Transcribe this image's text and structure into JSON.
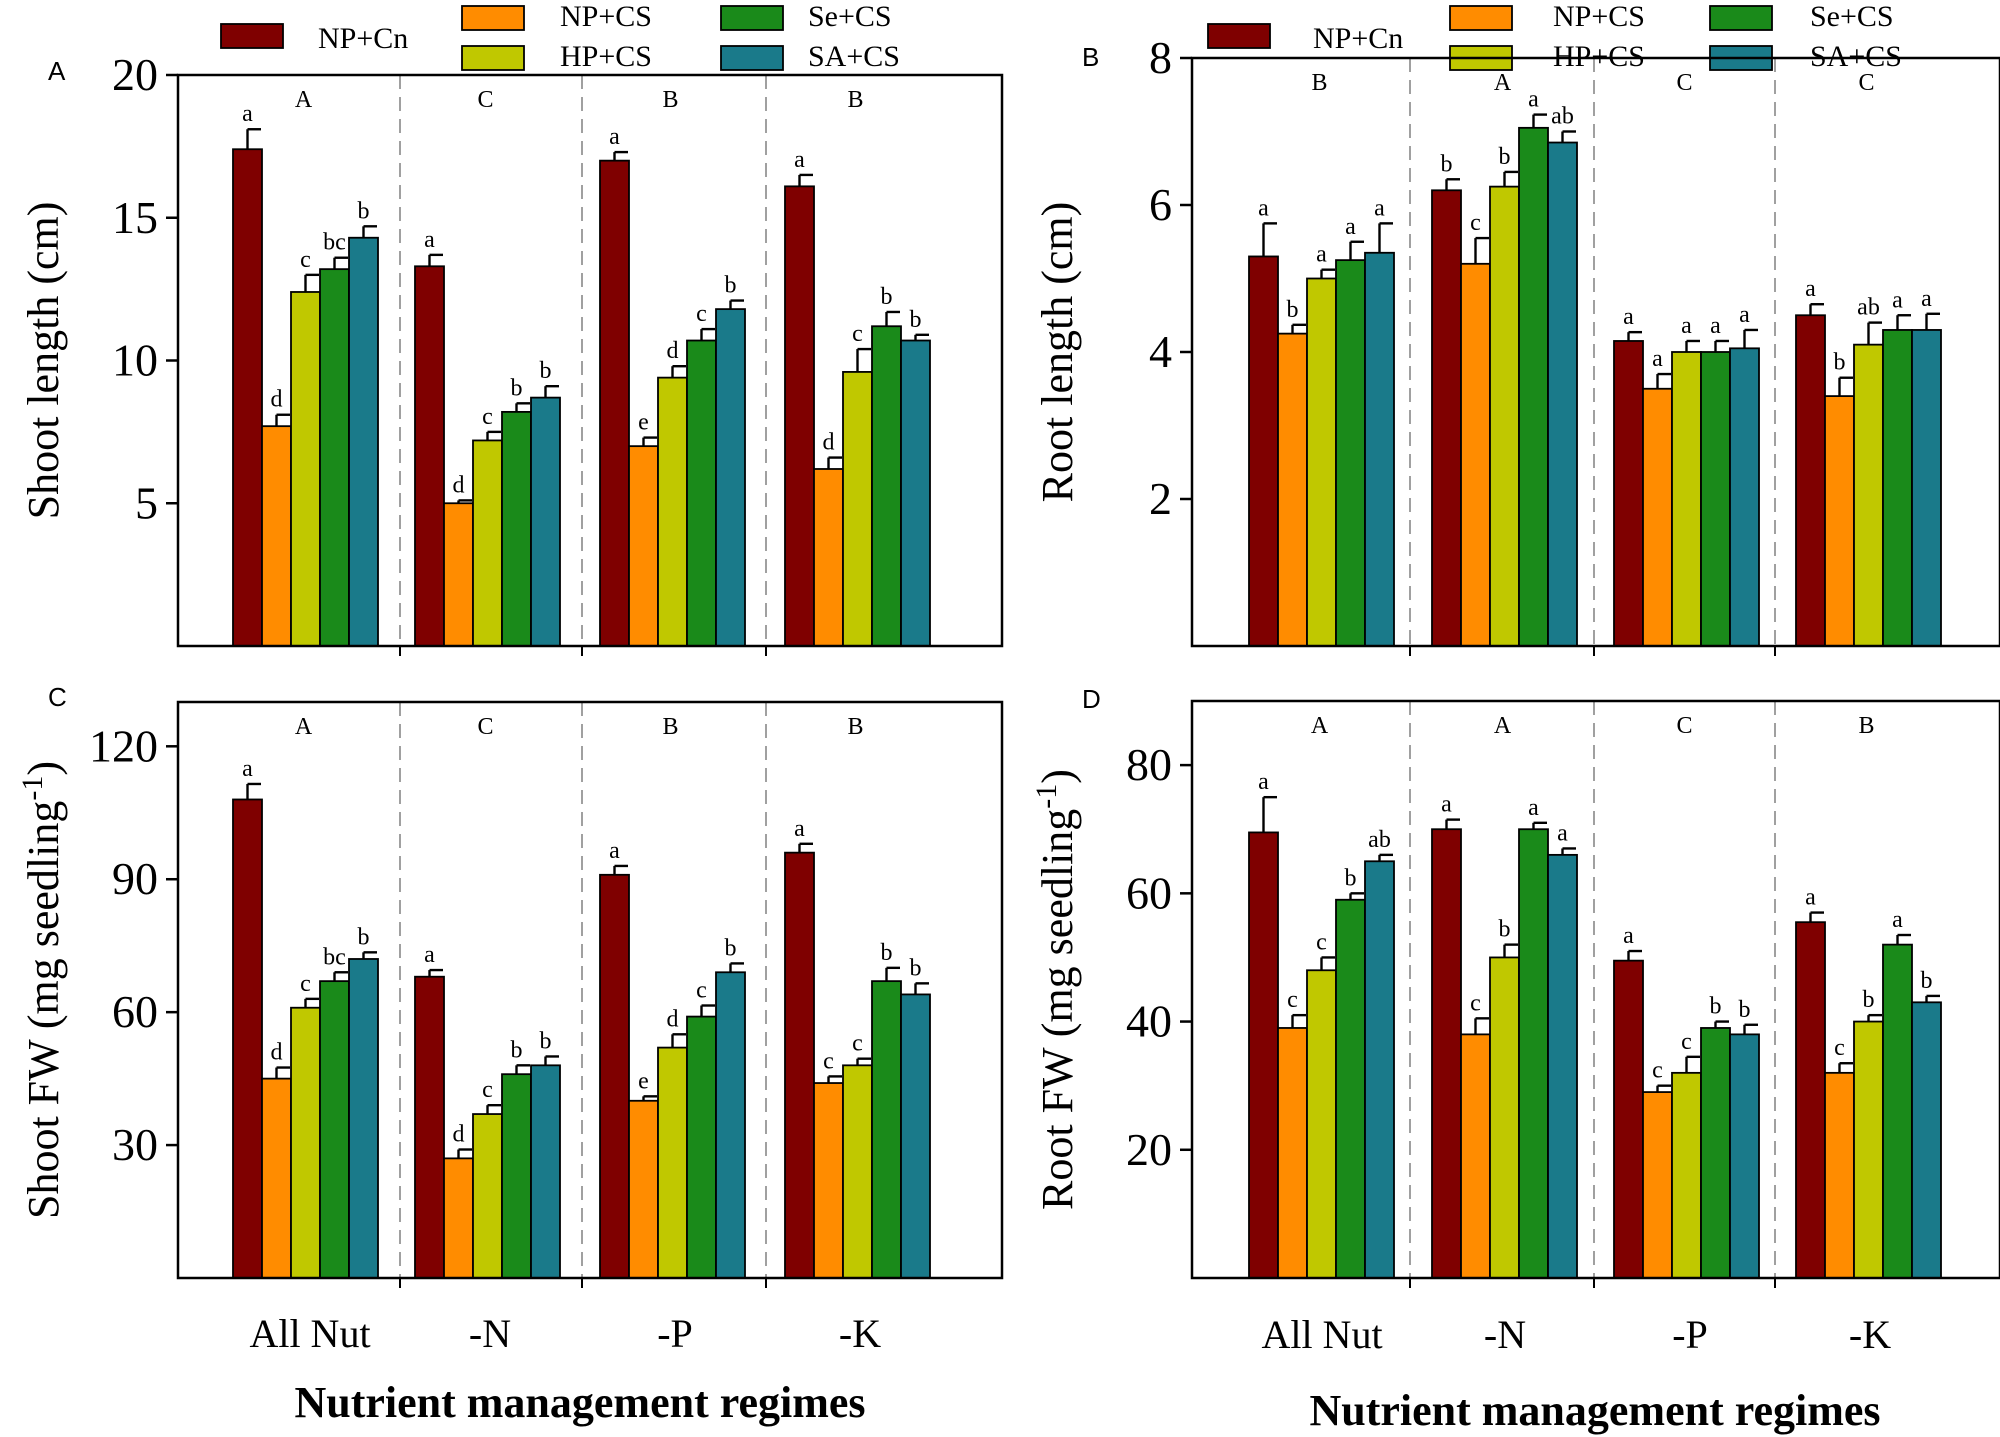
{
  "colors": {
    "NP+Cn": "#7f0000",
    "NP+CS": "#ff8c00",
    "HP+CS": "#c0c800",
    "Se+CS": "#1a8a1a",
    "SA+CS": "#1a7a8a"
  },
  "legend": {
    "left": [
      {
        "name": "NP+Cn",
        "label": "NP+Cn"
      },
      {
        "name": "NP+CS",
        "label": "NP+CS"
      },
      {
        "name": "HP+CS",
        "label": "HP+CS"
      },
      {
        "name": "Se+CS",
        "label": "Se+CS"
      },
      {
        "name": "SA+CS",
        "label": "SA+CS"
      }
    ],
    "right": [
      {
        "name": "NP+Cn",
        "label": "NP+Cn"
      },
      {
        "name": "NP+CS",
        "label": "NP+CS"
      },
      {
        "name": "HP+CS",
        "label": "HP+CS"
      },
      {
        "name": "Se+CS",
        "label": "Se+CS"
      },
      {
        "name": "SA+CS",
        "label": "SA+CS"
      }
    ]
  },
  "x_axis": {
    "left": {
      "title": "Nutrient management regimes",
      "categories": [
        "All Nut",
        "-N",
        "-P",
        "-K"
      ]
    },
    "right": {
      "title": "Nutrient management regimes",
      "categories": [
        "All Nut",
        "-N",
        "-P",
        "-K"
      ]
    }
  },
  "chart_data": [
    {
      "panel": "A",
      "type": "bar",
      "ylabel": "Shoot length (cm)",
      "ylim": [
        0,
        20
      ],
      "yticks": [
        5,
        10,
        15,
        20
      ],
      "categories": [
        "All Nut",
        "-N",
        "-P",
        "-K"
      ],
      "group_letters": [
        "A",
        "C",
        "B",
        "B"
      ],
      "series": [
        {
          "name": "NP+Cn",
          "values": [
            17.4,
            13.3,
            17.0,
            16.1
          ],
          "errors": [
            0.7,
            0.4,
            0.3,
            0.4
          ],
          "letters": [
            "a",
            "a",
            "a",
            "a"
          ]
        },
        {
          "name": "NP+CS",
          "values": [
            7.7,
            5.0,
            7.0,
            6.2
          ],
          "errors": [
            0.4,
            0.1,
            0.3,
            0.4
          ],
          "letters": [
            "d",
            "d",
            "e",
            "d"
          ]
        },
        {
          "name": "HP+CS",
          "values": [
            12.4,
            7.2,
            9.4,
            9.6
          ],
          "errors": [
            0.6,
            0.3,
            0.4,
            0.8
          ],
          "letters": [
            "c",
            "c",
            "d",
            "c"
          ]
        },
        {
          "name": "Se+CS",
          "values": [
            13.2,
            8.2,
            10.7,
            11.2
          ],
          "errors": [
            0.4,
            0.3,
            0.4,
            0.5
          ],
          "letters": [
            "bc",
            "b",
            "c",
            "b"
          ]
        },
        {
          "name": "SA+CS",
          "values": [
            14.3,
            8.7,
            11.8,
            10.7
          ],
          "errors": [
            0.4,
            0.4,
            0.3,
            0.2
          ],
          "letters": [
            "b",
            "b",
            "b",
            "b"
          ]
        }
      ]
    },
    {
      "panel": "B",
      "type": "bar",
      "ylabel": "Root length (cm)",
      "ylim": [
        0,
        8
      ],
      "yticks": [
        2,
        4,
        6,
        8
      ],
      "categories": [
        "All Nut",
        "-N",
        "-P",
        "-K"
      ],
      "group_letters": [
        "B",
        "A",
        "C",
        "C"
      ],
      "series": [
        {
          "name": "NP+Cn",
          "values": [
            5.3,
            6.2,
            4.15,
            4.5
          ],
          "errors": [
            0.45,
            0.15,
            0.12,
            0.15
          ],
          "letters": [
            "a",
            "b",
            "a",
            "a"
          ]
        },
        {
          "name": "NP+CS",
          "values": [
            4.25,
            5.2,
            3.5,
            3.4
          ],
          "errors": [
            0.12,
            0.35,
            0.2,
            0.25
          ],
          "letters": [
            "b",
            "c",
            "a",
            "b"
          ]
        },
        {
          "name": "HP+CS",
          "values": [
            5.0,
            6.25,
            4.0,
            4.1
          ],
          "errors": [
            0.12,
            0.2,
            0.15,
            0.3
          ],
          "letters": [
            "a",
            "b",
            "a",
            "ab"
          ]
        },
        {
          "name": "Se+CS",
          "values": [
            5.25,
            7.05,
            4.0,
            4.3
          ],
          "errors": [
            0.25,
            0.18,
            0.15,
            0.2
          ],
          "letters": [
            "a",
            "a",
            "a",
            "a"
          ]
        },
        {
          "name": "SA+CS",
          "values": [
            5.35,
            6.85,
            4.05,
            4.3
          ],
          "errors": [
            0.4,
            0.15,
            0.25,
            0.22
          ],
          "letters": [
            "a",
            "ab",
            "a",
            "a"
          ]
        }
      ]
    },
    {
      "panel": "C",
      "type": "bar",
      "ylabel": "Shoot FW (mg seedling",
      "ylabel_sup": "-1",
      "ylabel_end": ")",
      "ylim": [
        0,
        130
      ],
      "yticks": [
        30,
        60,
        90,
        120
      ],
      "categories": [
        "All Nut",
        "-N",
        "-P",
        "-K"
      ],
      "group_letters": [
        "A",
        "C",
        "B",
        "B"
      ],
      "series": [
        {
          "name": "NP+Cn",
          "values": [
            108,
            68,
            91,
            96
          ],
          "errors": [
            3.5,
            1.5,
            2,
            2
          ],
          "letters": [
            "a",
            "a",
            "a",
            "a"
          ]
        },
        {
          "name": "NP+CS",
          "values": [
            45,
            27,
            40,
            44
          ],
          "errors": [
            2.5,
            2,
            1,
            1.5
          ],
          "letters": [
            "d",
            "d",
            "e",
            "c"
          ]
        },
        {
          "name": "HP+CS",
          "values": [
            61,
            37,
            52,
            48
          ],
          "errors": [
            2,
            2,
            3,
            1.5
          ],
          "letters": [
            "c",
            "c",
            "d",
            "c"
          ]
        },
        {
          "name": "Se+CS",
          "values": [
            67,
            46,
            59,
            67
          ],
          "errors": [
            2,
            2,
            2.5,
            3
          ],
          "letters": [
            "bc",
            "b",
            "c",
            "b"
          ]
        },
        {
          "name": "SA+CS",
          "values": [
            72,
            48,
            69,
            64
          ],
          "errors": [
            1.5,
            2,
            2,
            2.5
          ],
          "letters": [
            "b",
            "b",
            "b",
            "b"
          ]
        }
      ]
    },
    {
      "panel": "D",
      "type": "bar",
      "ylabel": "Root FW (mg seedling",
      "ylabel_sup": "-1",
      "ylabel_end": ")",
      "ylim": [
        0,
        90
      ],
      "yticks": [
        20,
        40,
        60,
        80
      ],
      "categories": [
        "All Nut",
        "-N",
        "-P",
        "-K"
      ],
      "group_letters": [
        "A",
        "A",
        "C",
        "B"
      ],
      "series": [
        {
          "name": "NP+Cn",
          "values": [
            69.5,
            70,
            49.5,
            55.5
          ],
          "errors": [
            5.5,
            1.5,
            1.5,
            1.5
          ],
          "letters": [
            "a",
            "a",
            "a",
            "a"
          ]
        },
        {
          "name": "NP+CS",
          "values": [
            39,
            38,
            29,
            32
          ],
          "errors": [
            2,
            2.5,
            1,
            1.5
          ],
          "letters": [
            "c",
            "c",
            "c",
            "c"
          ]
        },
        {
          "name": "HP+CS",
          "values": [
            48,
            50,
            32,
            40
          ],
          "errors": [
            2,
            2,
            2.5,
            1
          ],
          "letters": [
            "c",
            "b",
            "c",
            "b"
          ]
        },
        {
          "name": "Se+CS",
          "values": [
            59,
            70,
            39,
            52
          ],
          "errors": [
            1,
            1,
            1,
            1.5
          ],
          "letters": [
            "b",
            "a",
            "b",
            "a"
          ]
        },
        {
          "name": "SA+CS",
          "values": [
            65,
            66,
            38,
            43
          ],
          "errors": [
            1,
            1,
            1.5,
            1
          ],
          "letters": [
            "ab",
            "a",
            "b",
            "b"
          ]
        }
      ]
    }
  ]
}
